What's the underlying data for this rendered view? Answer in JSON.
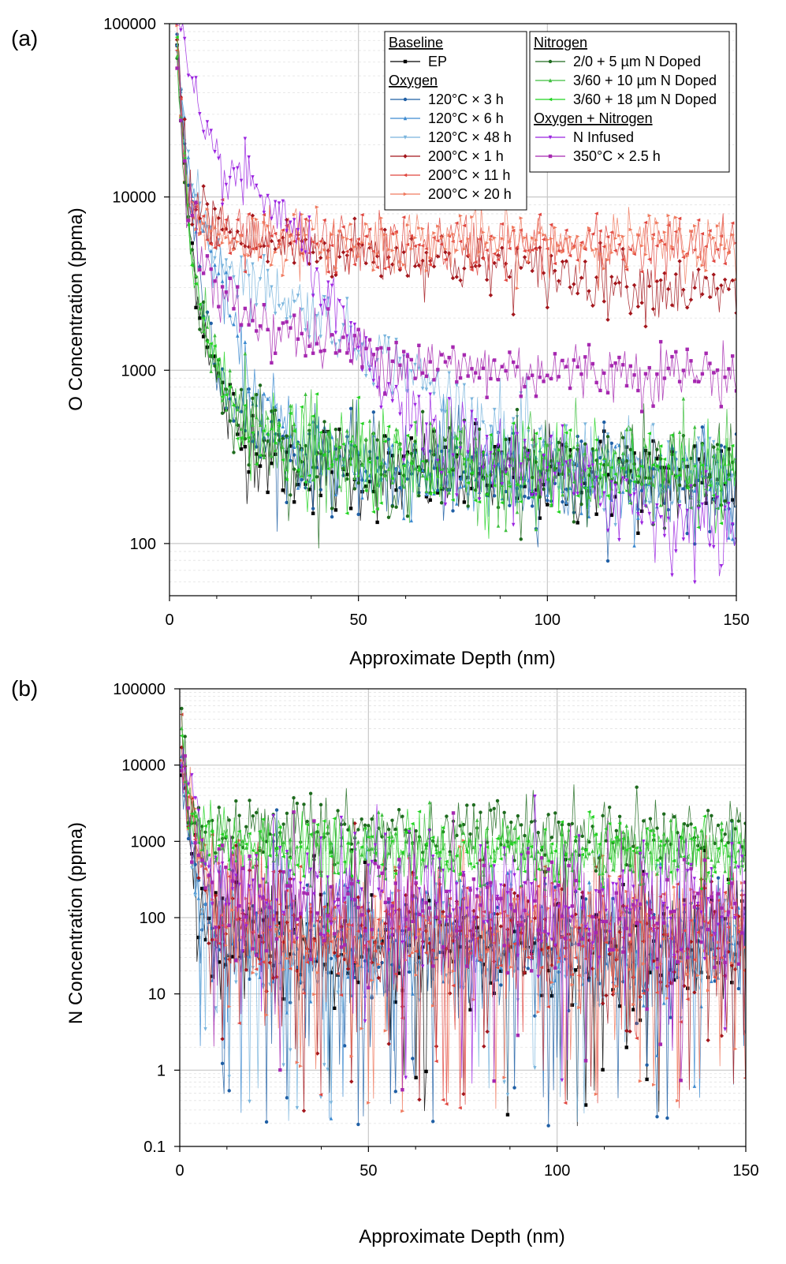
{
  "chart_data": [
    {
      "panel_label": "(a)",
      "type": "line",
      "xlabel": "Approximate Depth (nm)",
      "ylabel": "O Concentration (ppma)",
      "xlim": [
        0,
        150
      ],
      "ylim": [
        50,
        100000
      ],
      "yscale": "log",
      "x_ticks": [
        "0",
        "50",
        "100",
        "150"
      ],
      "y_ticks": [
        "100",
        "1000",
        "10000",
        "100000"
      ],
      "grid": true,
      "legend": {
        "placement": "top-right",
        "groups": [
          {
            "header": "Baseline",
            "column": "left",
            "entries": [
              {
                "label": "EP",
                "color": "#000000",
                "marker": "square"
              }
            ]
          },
          {
            "header": "Oxygen",
            "column": "left",
            "entries": [
              {
                "label": "120°C × 3 h",
                "color": "#1f5fa5",
                "marker": "circle"
              },
              {
                "label": "120°C × 6 h",
                "color": "#3c8ad0",
                "marker": "triangle-up"
              },
              {
                "label": "120°C × 48 h",
                "color": "#7ab5dd",
                "marker": "triangle-down"
              },
              {
                "label": "200°C × 1 h",
                "color": "#a3161c",
                "marker": "diamond"
              },
              {
                "label": "200°C × 11 h",
                "color": "#e0463f",
                "marker": "triangle-left"
              },
              {
                "label": "200°C × 20 h",
                "color": "#f07a5f",
                "marker": "triangle-right"
              }
            ]
          },
          {
            "header": "Nitrogen",
            "column": "right",
            "entries": [
              {
                "label": "2/0 + 5 µm N Doped",
                "color": "#1e6b1e",
                "marker": "circle"
              },
              {
                "label": "3/60 + 10 µm N Doped",
                "color": "#3fbf3f",
                "marker": "triangle-up"
              },
              {
                "label": "3/60 + 18 µm N Doped",
                "color": "#22d422",
                "marker": "triangle-left"
              }
            ]
          },
          {
            "header": "Oxygen + Nitrogen",
            "column": "right",
            "entries": [
              {
                "label": "N Infused",
                "color": "#9b24e0",
                "marker": "triangle-down"
              },
              {
                "label": "350°C × 2.5 h",
                "color": "#a628b0",
                "marker": "square"
              }
            ]
          }
        ]
      },
      "series": [
        {
          "name": "EP",
          "color": "#000000",
          "x": [
            2,
            3,
            5,
            8,
            10,
            12,
            15,
            20,
            30,
            50,
            75,
            100,
            125,
            150
          ],
          "values": [
            80000,
            30000,
            7000,
            2500,
            1600,
            1000,
            600,
            400,
            300,
            260,
            250,
            245,
            240,
            240
          ]
        },
        {
          "name": "120°C × 3 h",
          "color": "#1f5fa5",
          "x": [
            2,
            3,
            5,
            8,
            10,
            12,
            15,
            20,
            30,
            50,
            100,
            150
          ],
          "values": [
            80000,
            40000,
            12000,
            3500,
            2000,
            1300,
            800,
            500,
            340,
            280,
            240,
            230
          ]
        },
        {
          "name": "120°C × 6 h",
          "color": "#3c8ad0",
          "x": [
            2,
            3,
            5,
            8,
            10,
            12,
            15,
            18,
            20,
            25,
            30,
            40,
            50,
            75,
            100,
            150
          ],
          "values": [
            80000,
            40000,
            14000,
            7000,
            5200,
            4000,
            2500,
            1300,
            1000,
            600,
            440,
            340,
            290,
            250,
            235,
            220
          ]
        },
        {
          "name": "120°C × 48 h",
          "color": "#7ab5dd",
          "x": [
            2,
            3,
            5,
            8,
            10,
            15,
            20,
            30,
            40,
            50,
            60,
            70,
            80,
            90,
            100,
            110,
            120,
            150
          ],
          "values": [
            80000,
            40000,
            14000,
            8000,
            6500,
            4200,
            3500,
            2700,
            2100,
            1400,
            1100,
            800,
            560,
            380,
            310,
            280,
            260,
            230
          ]
        },
        {
          "name": "200°C × 1 h",
          "color": "#a3161c",
          "x": [
            2,
            3,
            5,
            8,
            10,
            15,
            20,
            30,
            40,
            50,
            60,
            75,
            100,
            125,
            150
          ],
          "values": [
            90000,
            30000,
            12000,
            8500,
            8000,
            6500,
            5500,
            5200,
            5000,
            4800,
            4600,
            4300,
            3600,
            3100,
            2650
          ]
        },
        {
          "name": "200°C × 11 h",
          "color": "#e0463f",
          "x": [
            2,
            3,
            5,
            8,
            10,
            15,
            20,
            30,
            50,
            75,
            100,
            125,
            150
          ],
          "values": [
            80000,
            30000,
            9000,
            7000,
            6500,
            5800,
            5500,
            5500,
            5300,
            5300,
            5200,
            5100,
            5000
          ]
        },
        {
          "name": "200°C × 20 h",
          "color": "#f07a5f",
          "x": [
            2,
            3,
            5,
            8,
            10,
            15,
            20,
            30,
            50,
            75,
            100,
            125,
            150
          ],
          "values": [
            80000,
            30000,
            9000,
            7200,
            6800,
            6000,
            5700,
            5600,
            5600,
            5600,
            5500,
            5500,
            5300
          ]
        },
        {
          "name": "2/0 + 5 µm N Doped",
          "color": "#1e6b1e",
          "x": [
            2,
            3,
            5,
            8,
            10,
            12,
            15,
            20,
            30,
            50,
            75,
            100,
            125,
            150
          ],
          "values": [
            70000,
            25000,
            6000,
            2300,
            1500,
            1000,
            700,
            480,
            340,
            290,
            280,
            270,
            265,
            260
          ]
        },
        {
          "name": "3/60 + 10 µm N Doped",
          "color": "#3fbf3f",
          "x": [
            2,
            3,
            5,
            8,
            10,
            12,
            15,
            20,
            30,
            50,
            75,
            100,
            125,
            150
          ],
          "values": [
            70000,
            25000,
            7000,
            2600,
            1700,
            1200,
            800,
            520,
            360,
            300,
            285,
            275,
            265,
            260
          ]
        },
        {
          "name": "3/60 + 18 µm N Doped",
          "color": "#22d422",
          "x": [
            2,
            3,
            5,
            8,
            10,
            12,
            15,
            20,
            30,
            50,
            75,
            100,
            125,
            150
          ],
          "values": [
            70000,
            25000,
            6500,
            2400,
            1600,
            1100,
            750,
            500,
            350,
            300,
            285,
            275,
            265,
            260
          ]
        },
        {
          "name": "N Infused",
          "color": "#9b24e0",
          "x": [
            2,
            3,
            4,
            5,
            8,
            10,
            15,
            20,
            25,
            30,
            35,
            40,
            45,
            50,
            55,
            60,
            65,
            70,
            80,
            90,
            100,
            110,
            120,
            130,
            140,
            150
          ],
          "values": [
            100000,
            100000,
            80000,
            50000,
            25000,
            18000,
            14000,
            12000,
            10000,
            7500,
            5200,
            3200,
            1900,
            1200,
            850,
            650,
            460,
            380,
            330,
            300,
            260,
            220,
            190,
            150,
            130,
            110
          ]
        },
        {
          "name": "350°C × 2.5 h",
          "color": "#a628b0",
          "x": [
            2,
            3,
            5,
            8,
            10,
            12,
            15,
            20,
            25,
            30,
            40,
            50,
            60,
            75,
            100,
            125,
            150
          ],
          "values": [
            80000,
            30000,
            10000,
            5000,
            3500,
            2800,
            2500,
            2200,
            1900,
            1700,
            1500,
            1300,
            1150,
            1050,
            1000,
            980,
            950
          ]
        }
      ]
    },
    {
      "panel_label": "(b)",
      "type": "line",
      "xlabel": "Approximate Depth (nm)",
      "ylabel": "N Concentration (ppma)",
      "xlim": [
        0,
        150
      ],
      "ylim": [
        0.1,
        100000
      ],
      "yscale": "log",
      "x_ticks": [
        "0",
        "50",
        "100",
        "150"
      ],
      "y_ticks": [
        "0.1",
        "1",
        "10",
        "100",
        "1000",
        "10000",
        "100000"
      ],
      "grid": true,
      "series": [
        {
          "name": "EP",
          "color": "#000000",
          "x": [
            0.5,
            2,
            4,
            6,
            8,
            10,
            15,
            20,
            50,
            100,
            150
          ],
          "values": [
            10000,
            2000,
            300,
            150,
            80,
            60,
            50,
            45,
            45,
            45,
            45
          ]
        },
        {
          "name": "120°C × 3 h",
          "color": "#1f5fa5",
          "x": [
            0.5,
            2,
            4,
            6,
            8,
            10,
            15,
            20,
            50,
            100,
            150
          ],
          "values": [
            10000,
            2000,
            400,
            180,
            90,
            70,
            55,
            50,
            45,
            45,
            45
          ]
        },
        {
          "name": "120°C × 6 h",
          "color": "#3c8ad0",
          "x": [
            0.5,
            2,
            4,
            6,
            8,
            10,
            15,
            20,
            50,
            100,
            150
          ],
          "values": [
            10000,
            2000,
            400,
            180,
            90,
            70,
            55,
            50,
            45,
            45,
            45
          ]
        },
        {
          "name": "120°C × 48 h",
          "color": "#7ab5dd",
          "x": [
            0.5,
            2,
            4,
            6,
            8,
            10,
            15,
            20,
            50,
            100,
            150
          ],
          "values": [
            10000,
            2000,
            350,
            170,
            85,
            65,
            55,
            50,
            45,
            45,
            45
          ]
        },
        {
          "name": "200°C × 1 h",
          "color": "#a3161c",
          "x": [
            0.5,
            2,
            4,
            6,
            8,
            10,
            15,
            20,
            50,
            100,
            150
          ],
          "values": [
            10000,
            3000,
            1200,
            450,
            200,
            120,
            80,
            65,
            55,
            55,
            55
          ]
        },
        {
          "name": "200°C × 11 h",
          "color": "#e0463f",
          "x": [
            0.5,
            2,
            4,
            6,
            8,
            10,
            15,
            20,
            50,
            100,
            150
          ],
          "values": [
            10000,
            3000,
            1500,
            600,
            250,
            150,
            90,
            70,
            60,
            60,
            60
          ]
        },
        {
          "name": "200°C × 20 h",
          "color": "#f07a5f",
          "x": [
            0.5,
            2,
            4,
            6,
            8,
            10,
            15,
            20,
            50,
            100,
            150
          ],
          "values": [
            10000,
            3000,
            1500,
            600,
            250,
            150,
            90,
            70,
            60,
            60,
            60
          ]
        },
        {
          "name": "2/0 + 5 µm N Doped",
          "color": "#1e6b1e",
          "x": [
            0.5,
            2,
            4,
            6,
            8,
            10,
            15,
            20,
            50,
            100,
            150
          ],
          "values": [
            40000,
            4000,
            2000,
            1600,
            1500,
            1500,
            1450,
            1450,
            1400,
            1350,
            1300
          ]
        },
        {
          "name": "3/60 + 10 µm N Doped",
          "color": "#3fbf3f",
          "x": [
            0.5,
            2,
            4,
            6,
            8,
            10,
            15,
            20,
            50,
            100,
            150
          ],
          "values": [
            30000,
            3000,
            1400,
            1000,
            900,
            850,
            800,
            780,
            750,
            700,
            700
          ]
        },
        {
          "name": "3/60 + 18 µm N Doped",
          "color": "#22d422",
          "x": [
            0.5,
            2,
            4,
            6,
            8,
            10,
            15,
            20,
            50,
            100,
            150
          ],
          "values": [
            30000,
            3000,
            1400,
            1000,
            900,
            850,
            800,
            780,
            750,
            700,
            700
          ]
        },
        {
          "name": "N Infused",
          "color": "#9b24e0",
          "x": [
            0.5,
            2,
            4,
            6,
            8,
            10,
            12,
            15,
            20,
            30,
            50,
            100,
            150
          ],
          "values": [
            20000,
            8000,
            3000,
            1200,
            600,
            400,
            320,
            260,
            220,
            180,
            160,
            150,
            150
          ]
        },
        {
          "name": "350°C × 2.5 h",
          "color": "#a628b0",
          "x": [
            0.5,
            2,
            4,
            6,
            8,
            10,
            15,
            20,
            30,
            50,
            100,
            150
          ],
          "values": [
            10000,
            3000,
            800,
            400,
            250,
            200,
            170,
            150,
            140,
            130,
            120,
            110
          ]
        }
      ]
    }
  ]
}
